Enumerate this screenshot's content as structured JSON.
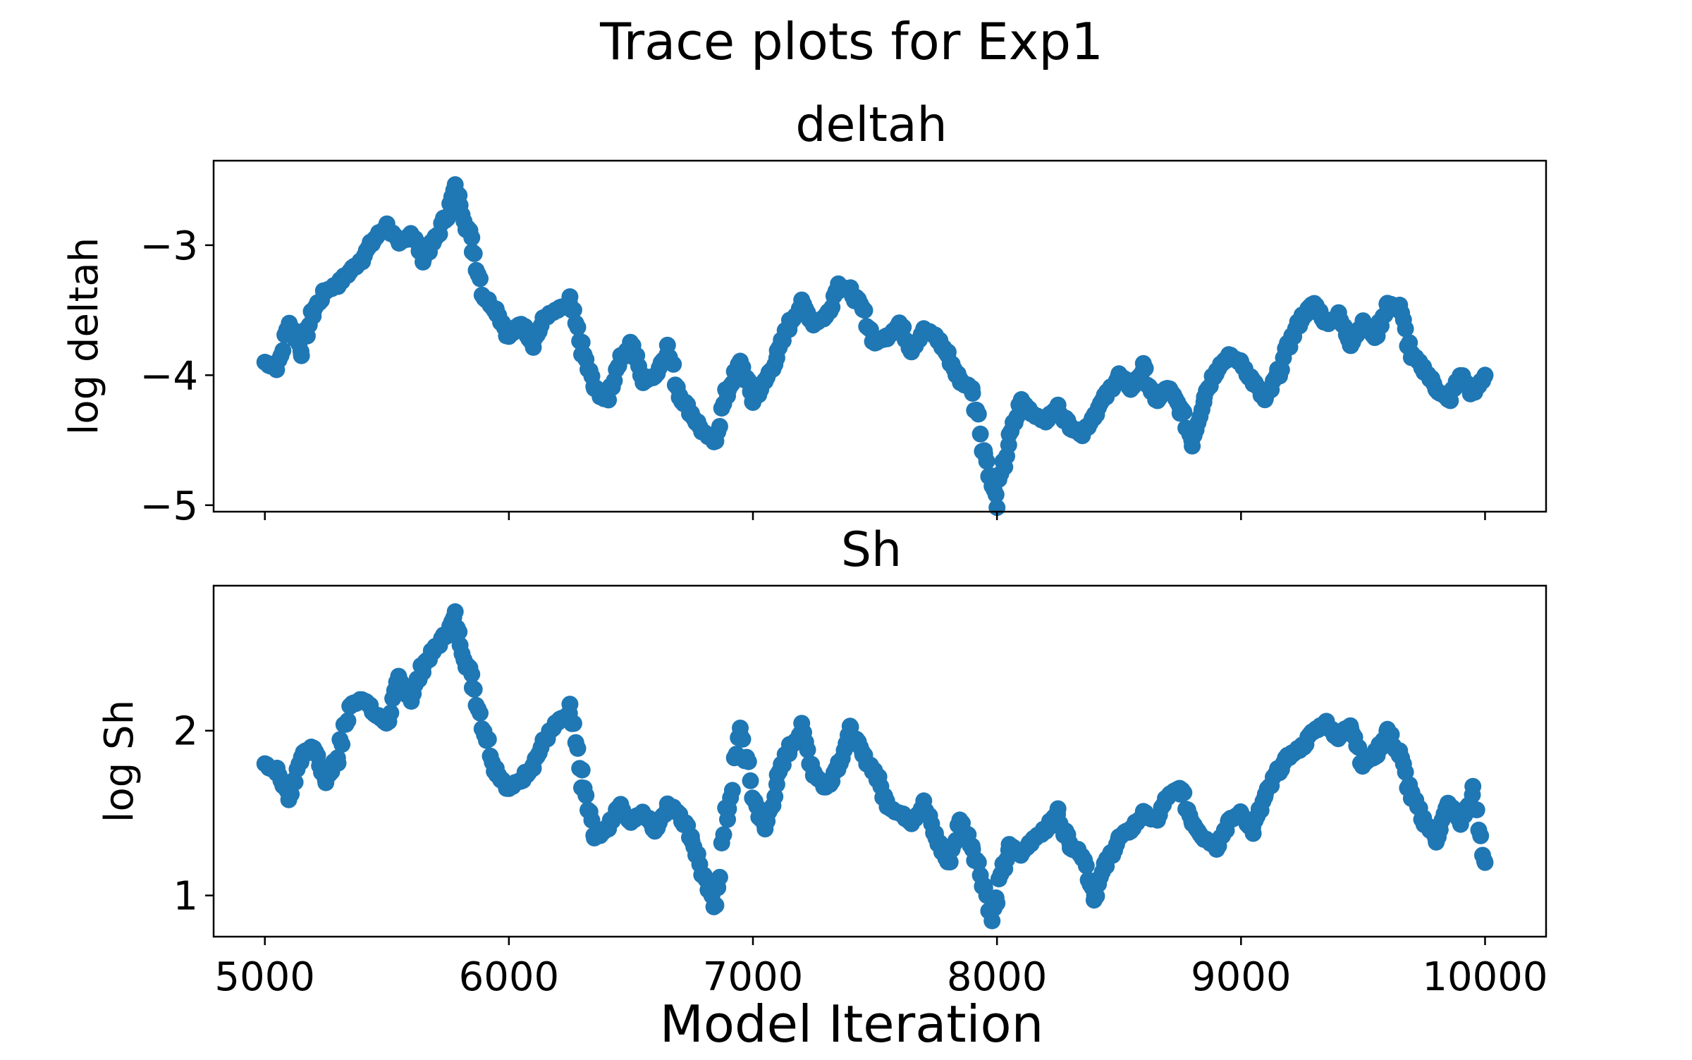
{
  "figure": {
    "title": "Trace plots for Exp1",
    "xlabel": "Model Iteration"
  },
  "chart_data": [
    {
      "type": "scatter",
      "title": "deltah",
      "xlabel": "",
      "ylabel": "log deltah",
      "xlim": [
        4790,
        10250
      ],
      "ylim": [
        -5.05,
        -2.35
      ],
      "xticks": [
        5000,
        6000,
        7000,
        8000,
        9000,
        10000
      ],
      "yticks": [
        -5,
        -4,
        -3
      ],
      "ytick_labels": [
        "−5",
        "−4",
        "−3"
      ],
      "show_xtick_labels": false,
      "grid": false,
      "color": "#1f77b4",
      "x": [
        5000,
        5050,
        5100,
        5150,
        5200,
        5250,
        5300,
        5350,
        5400,
        5450,
        5500,
        5550,
        5600,
        5650,
        5700,
        5750,
        5780,
        5800,
        5850,
        5900,
        5950,
        6000,
        6050,
        6100,
        6150,
        6200,
        6250,
        6300,
        6350,
        6400,
        6450,
        6500,
        6550,
        6600,
        6650,
        6700,
        6750,
        6800,
        6840,
        6900,
        6950,
        7000,
        7050,
        7100,
        7150,
        7200,
        7250,
        7300,
        7350,
        7400,
        7450,
        7500,
        7550,
        7600,
        7650,
        7700,
        7750,
        7800,
        7850,
        7900,
        7950,
        7980,
        8000,
        8050,
        8100,
        8150,
        8200,
        8250,
        8300,
        8350,
        8400,
        8450,
        8500,
        8550,
        8600,
        8650,
        8700,
        8750,
        8800,
        8850,
        8900,
        8950,
        9000,
        9050,
        9100,
        9150,
        9200,
        9250,
        9300,
        9350,
        9400,
        9450,
        9500,
        9550,
        9600,
        9650,
        9700,
        9750,
        9800,
        9850,
        9900,
        9950,
        10000
      ],
      "y": [
        -3.9,
        -3.95,
        -3.6,
        -3.8,
        -3.5,
        -3.35,
        -3.3,
        -3.2,
        -3.1,
        -2.95,
        -2.85,
        -3.0,
        -2.9,
        -3.1,
        -2.95,
        -2.75,
        -2.55,
        -2.65,
        -3.0,
        -3.4,
        -3.5,
        -3.7,
        -3.6,
        -3.75,
        -3.55,
        -3.5,
        -3.45,
        -3.8,
        -4.1,
        -4.2,
        -3.9,
        -3.75,
        -4.05,
        -4.0,
        -3.8,
        -4.15,
        -4.3,
        -4.45,
        -4.5,
        -4.1,
        -3.9,
        -4.2,
        -4.05,
        -3.85,
        -3.6,
        -3.45,
        -3.6,
        -3.55,
        -3.3,
        -3.35,
        -3.5,
        -3.75,
        -3.7,
        -3.6,
        -3.8,
        -3.65,
        -3.7,
        -3.85,
        -4.05,
        -4.1,
        -4.6,
        -4.85,
        -4.95,
        -4.5,
        -4.2,
        -4.3,
        -4.35,
        -4.25,
        -4.4,
        -4.45,
        -4.3,
        -4.15,
        -4.0,
        -4.1,
        -3.95,
        -4.2,
        -4.1,
        -4.25,
        -4.5,
        -4.15,
        -3.95,
        -3.85,
        -3.9,
        -4.05,
        -4.2,
        -4.0,
        -3.75,
        -3.55,
        -3.45,
        -3.6,
        -3.55,
        -3.75,
        -3.6,
        -3.7,
        -3.45,
        -3.5,
        -3.85,
        -3.95,
        -4.1,
        -4.2,
        -4.0,
        -4.15,
        -4.0
      ]
    },
    {
      "type": "scatter",
      "title": "Sh",
      "xlabel": "Model Iteration",
      "ylabel": "log Sh",
      "xlim": [
        4790,
        10250
      ],
      "ylim": [
        0.75,
        2.88
      ],
      "xticks": [
        5000,
        6000,
        7000,
        8000,
        9000,
        10000
      ],
      "yticks": [
        1,
        2
      ],
      "ytick_labels": [
        "1",
        "2"
      ],
      "show_xtick_labels": true,
      "grid": false,
      "color": "#1f77b4",
      "x": [
        5000,
        5050,
        5100,
        5150,
        5200,
        5250,
        5300,
        5350,
        5400,
        5450,
        5500,
        5550,
        5600,
        5650,
        5700,
        5750,
        5780,
        5800,
        5850,
        5900,
        5950,
        6000,
        6050,
        6100,
        6150,
        6200,
        6250,
        6300,
        6350,
        6400,
        6450,
        6500,
        6550,
        6600,
        6650,
        6700,
        6750,
        6800,
        6840,
        6900,
        6950,
        7000,
        7050,
        7100,
        7150,
        7200,
        7250,
        7300,
        7350,
        7400,
        7450,
        7500,
        7550,
        7600,
        7650,
        7700,
        7750,
        7800,
        7850,
        7900,
        7950,
        7980,
        8000,
        8050,
        8100,
        8150,
        8200,
        8250,
        8300,
        8350,
        8400,
        8450,
        8500,
        8550,
        8600,
        8650,
        8700,
        8750,
        8800,
        8850,
        8900,
        8950,
        9000,
        9050,
        9100,
        9150,
        9200,
        9250,
        9300,
        9350,
        9400,
        9450,
        9500,
        9550,
        9600,
        9650,
        9700,
        9750,
        9800,
        9850,
        9900,
        9950,
        10000
      ],
      "y": [
        1.8,
        1.75,
        1.6,
        1.85,
        1.9,
        1.7,
        1.85,
        2.15,
        2.2,
        2.1,
        2.05,
        2.3,
        2.2,
        2.4,
        2.5,
        2.6,
        2.7,
        2.55,
        2.3,
        2.0,
        1.75,
        1.65,
        1.7,
        1.8,
        1.95,
        2.05,
        2.1,
        1.7,
        1.35,
        1.4,
        1.55,
        1.45,
        1.5,
        1.4,
        1.55,
        1.5,
        1.35,
        1.1,
        0.95,
        1.55,
        2.0,
        1.6,
        1.4,
        1.7,
        1.9,
        2.0,
        1.75,
        1.65,
        1.8,
        2.0,
        1.85,
        1.75,
        1.55,
        1.5,
        1.45,
        1.55,
        1.35,
        1.2,
        1.45,
        1.3,
        1.05,
        0.85,
        1.0,
        1.3,
        1.25,
        1.35,
        1.4,
        1.5,
        1.3,
        1.25,
        1.0,
        1.2,
        1.35,
        1.4,
        1.5,
        1.45,
        1.6,
        1.65,
        1.45,
        1.35,
        1.3,
        1.45,
        1.5,
        1.4,
        1.6,
        1.75,
        1.85,
        1.9,
        2.0,
        2.05,
        1.95,
        2.05,
        1.8,
        1.85,
        2.0,
        1.85,
        1.6,
        1.45,
        1.35,
        1.55,
        1.45,
        1.6,
        1.2
      ]
    }
  ]
}
